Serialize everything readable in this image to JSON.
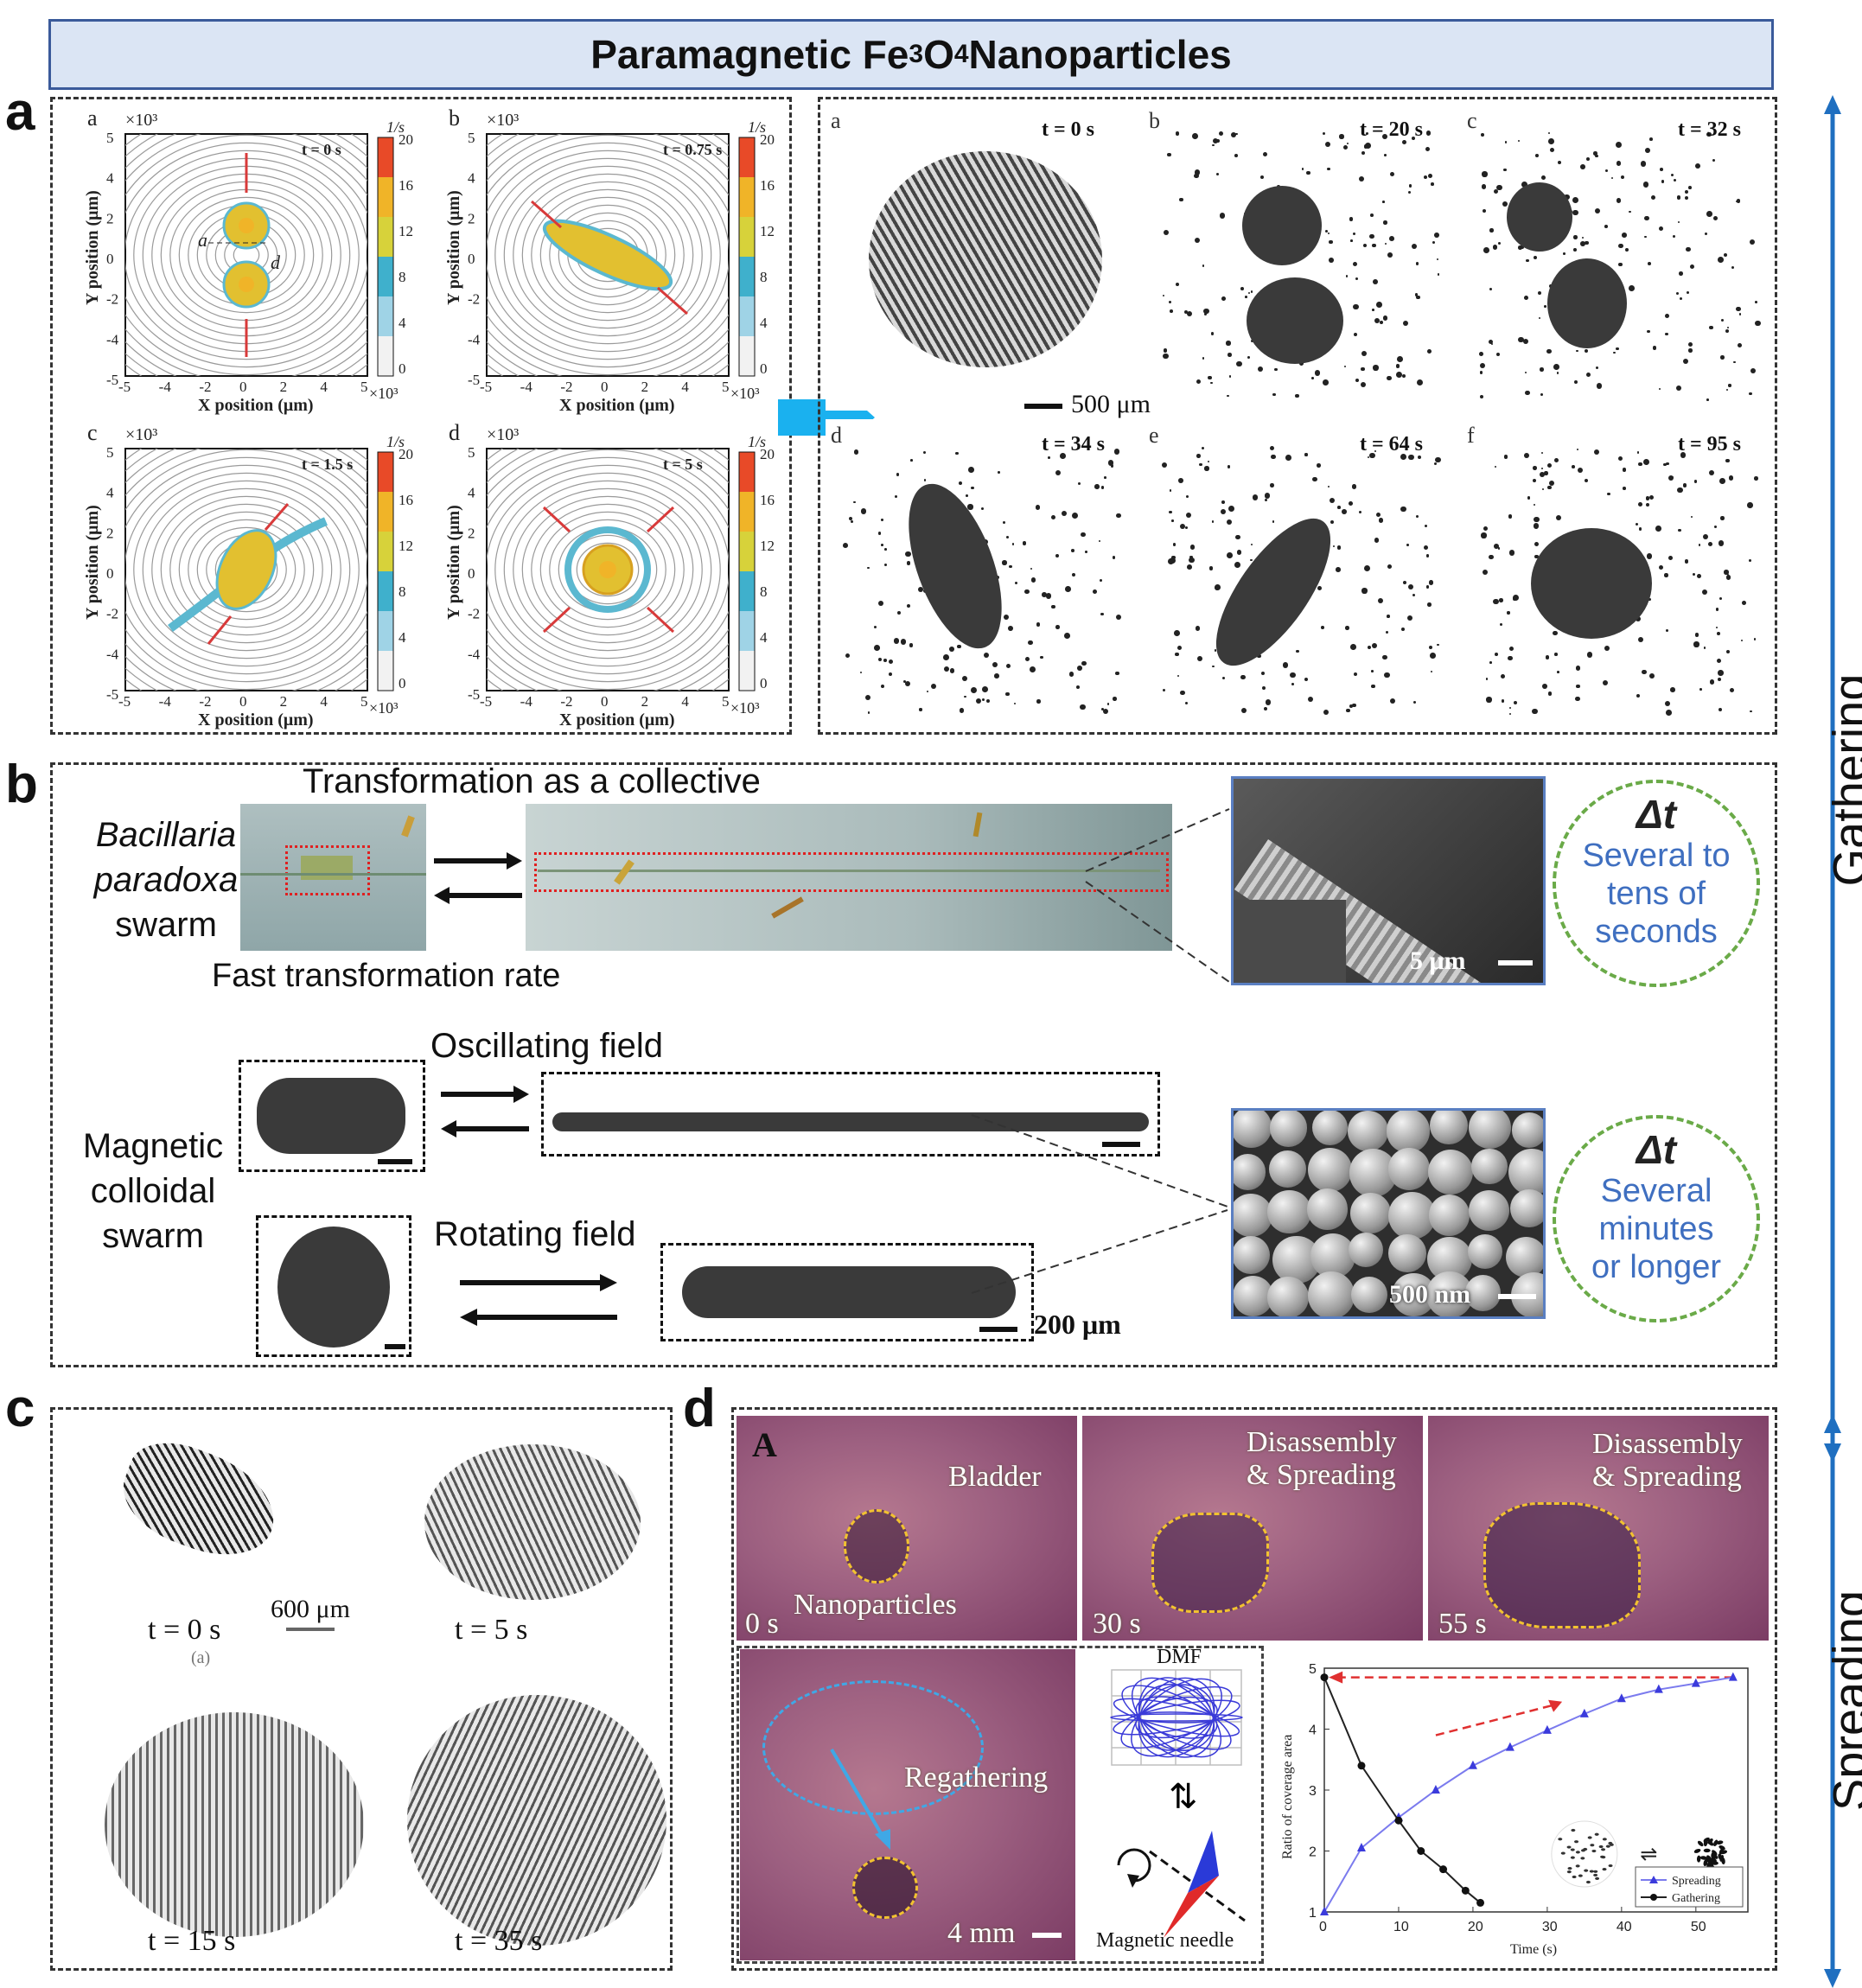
{
  "title": {
    "main": "Paramagnetic Fe",
    "sub1": "3",
    "mid": "O",
    "sub2": "4",
    "end": " Nanoparticles"
  },
  "panel_labels": {
    "a": "a",
    "b": "b",
    "c": "c",
    "d": "d"
  },
  "side": {
    "gathering": "Gathering",
    "spreading": "Spreading"
  },
  "panel_a": {
    "sim": {
      "subplots": [
        {
          "letter": "a",
          "time": "t = 0 s"
        },
        {
          "letter": "b",
          "time": "t = 0.75 s"
        },
        {
          "letter": "c",
          "time": "t = 1.5 s"
        },
        {
          "letter": "d",
          "time": "t = 5 s"
        }
      ],
      "exp_label": "×10³",
      "xlabel": "X position (μm)",
      "ylabel": "Y position (μm)",
      "colorbar_unit": "1/s",
      "colorbar_ticks": [
        "20",
        "16",
        "12",
        "8",
        "4",
        "0"
      ],
      "x_ticks": [
        "-5",
        "-4",
        "-2",
        "0",
        "2",
        "4",
        "5"
      ],
      "y_ticks": [
        "5",
        "4",
        "2",
        "0",
        "-2",
        "-4",
        "-5"
      ],
      "dim_a": "a",
      "dim_d": "d"
    },
    "exp": {
      "frames": [
        {
          "letter": "a",
          "time": "t = 0 s"
        },
        {
          "letter": "b",
          "time": "t = 20 s"
        },
        {
          "letter": "c",
          "time": "t = 32 s"
        },
        {
          "letter": "d",
          "time": "t = 34 s"
        },
        {
          "letter": "e",
          "time": "t = 64 s"
        },
        {
          "letter": "f",
          "time": "t = 95 s"
        }
      ],
      "scale": "500 μm"
    }
  },
  "panel_b": {
    "header": "Transformation as a collective",
    "bacillaria_1": "Bacillaria",
    "bacillaria_2": "paradoxa",
    "bacillaria_3": "swarm",
    "fast_rate": "Fast transformation rate",
    "sem1_scale": "5 μm",
    "dt1": {
      "symbol": "Δt",
      "l1": "Several to",
      "l2": "tens of",
      "l3": "seconds"
    },
    "oscillating": "Oscillating field",
    "magnetic_1": "Magnetic",
    "magnetic_2": "colloidal",
    "magnetic_3": "swarm",
    "rotating": "Rotating field",
    "scale_200": "200 μm",
    "sem2_scale": "500 nm",
    "dt2": {
      "symbol": "Δt",
      "l1": "Several",
      "l2": "minutes",
      "l3": "or longer"
    }
  },
  "panel_c": {
    "frames": [
      "t = 0 s",
      "t = 5 s",
      "t = 15 s",
      "t = 35 s"
    ],
    "scale": "600 μm",
    "sub": "(a)"
  },
  "panel_d": {
    "letter_A": "A",
    "bladder": "Bladder",
    "nanoparticles": "Nanoparticles",
    "dis_1": "Disassembly",
    "dis_2": "& Spreading",
    "times": [
      "0 s",
      "30 s",
      "55 s"
    ],
    "regathering": "Regathering",
    "scale": "4 mm",
    "dmf": "DMF",
    "needle": "Magnetic needle",
    "equilibrium": "⇌",
    "chart": {
      "ylabel": "Ratio of coverage area",
      "xlabel": "Time (s)",
      "legend": [
        "Spreading",
        "Gathering"
      ]
    }
  },
  "chart_data": {
    "type": "line",
    "xlabel": "Time (s)",
    "ylabel": "Ratio of coverage area",
    "xlim": [
      0,
      57
    ],
    "ylim": [
      1,
      5
    ],
    "x_ticks": [
      0,
      10,
      20,
      30,
      40,
      50
    ],
    "y_ticks": [
      1,
      2,
      3,
      4,
      5
    ],
    "legend_position": "bottom-right",
    "series": [
      {
        "name": "Spreading",
        "color": "#3b3bdc",
        "marker": "triangle",
        "x": [
          0,
          5,
          10,
          15,
          20,
          25,
          30,
          35,
          40,
          45,
          50,
          55
        ],
        "y": [
          1.0,
          2.05,
          2.55,
          3.0,
          3.4,
          3.7,
          3.98,
          4.25,
          4.5,
          4.65,
          4.75,
          4.85
        ]
      },
      {
        "name": "Gathering",
        "color": "#111111",
        "marker": "circle",
        "x": [
          0,
          5,
          10,
          13,
          16,
          19,
          21
        ],
        "y": [
          4.85,
          3.4,
          2.5,
          2.0,
          1.7,
          1.35,
          1.15
        ]
      }
    ]
  },
  "colors": {
    "title_bg": "#dbe5f4",
    "accent_blue": "#1f6fc0",
    "dt_green": "#6aaa48",
    "dt_text": "#3f6fc0"
  }
}
